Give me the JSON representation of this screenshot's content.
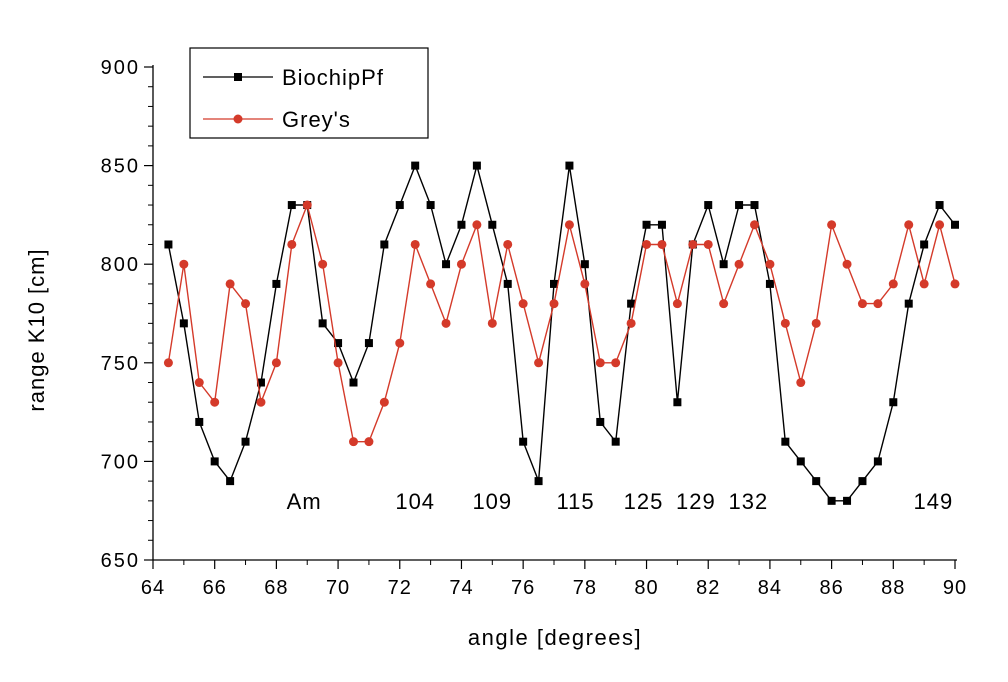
{
  "chart_data": {
    "type": "line",
    "title": "",
    "xlabel": "angle [degrees]",
    "ylabel": "range K10 [cm]",
    "xlim": [
      64,
      90
    ],
    "ylim": [
      650,
      900
    ],
    "x_ticks": [
      64,
      66,
      68,
      70,
      72,
      74,
      76,
      78,
      80,
      82,
      84,
      86,
      88,
      90
    ],
    "y_ticks": [
      650,
      700,
      750,
      800,
      850,
      900
    ],
    "grid": false,
    "legend_position": "top-left",
    "series": [
      {
        "name": "BiochipPf",
        "color": "#000000",
        "marker": "square",
        "points": [
          [
            64.5,
            810
          ],
          [
            65.0,
            770
          ],
          [
            65.5,
            720
          ],
          [
            66.0,
            700
          ],
          [
            66.5,
            690
          ],
          [
            67.0,
            710
          ],
          [
            67.5,
            740
          ],
          [
            68.0,
            790
          ],
          [
            68.5,
            830
          ],
          [
            69.0,
            830
          ],
          [
            69.5,
            770
          ],
          [
            70.0,
            760
          ],
          [
            70.5,
            740
          ],
          [
            71.0,
            760
          ],
          [
            71.5,
            810
          ],
          [
            72.0,
            830
          ],
          [
            72.5,
            850
          ],
          [
            73.0,
            830
          ],
          [
            73.5,
            800
          ],
          [
            74.0,
            820
          ],
          [
            74.5,
            850
          ],
          [
            75.0,
            820
          ],
          [
            75.5,
            790
          ],
          [
            76.0,
            710
          ],
          [
            76.5,
            690
          ],
          [
            77.0,
            790
          ],
          [
            77.5,
            850
          ],
          [
            78.0,
            800
          ],
          [
            78.5,
            720
          ],
          [
            79.0,
            710
          ],
          [
            79.5,
            780
          ],
          [
            80.0,
            820
          ],
          [
            80.5,
            820
          ],
          [
            81.0,
            730
          ],
          [
            81.5,
            810
          ],
          [
            82.0,
            830
          ],
          [
            82.5,
            800
          ],
          [
            83.0,
            830
          ],
          [
            83.5,
            830
          ],
          [
            84.0,
            790
          ],
          [
            84.5,
            710
          ],
          [
            85.0,
            700
          ],
          [
            85.5,
            690
          ],
          [
            86.0,
            680
          ],
          [
            86.5,
            680
          ],
          [
            87.0,
            690
          ],
          [
            87.5,
            700
          ],
          [
            88.0,
            730
          ],
          [
            88.5,
            780
          ],
          [
            89.0,
            810
          ],
          [
            89.5,
            830
          ],
          [
            90.0,
            820
          ]
        ]
      },
      {
        "name": "Grey's",
        "color": "#d43a2a",
        "marker": "circle",
        "points": [
          [
            64.5,
            750
          ],
          [
            65.0,
            800
          ],
          [
            65.5,
            740
          ],
          [
            66.0,
            730
          ],
          [
            66.5,
            790
          ],
          [
            67.0,
            780
          ],
          [
            67.5,
            730
          ],
          [
            68.0,
            750
          ],
          [
            68.5,
            810
          ],
          [
            69.0,
            830
          ],
          [
            69.5,
            800
          ],
          [
            70.0,
            750
          ],
          [
            70.5,
            710
          ],
          [
            71.0,
            710
          ],
          [
            71.5,
            730
          ],
          [
            72.0,
            760
          ],
          [
            72.5,
            810
          ],
          [
            73.0,
            790
          ],
          [
            73.5,
            770
          ],
          [
            74.0,
            800
          ],
          [
            74.5,
            820
          ],
          [
            75.0,
            770
          ],
          [
            75.5,
            810
          ],
          [
            76.0,
            780
          ],
          [
            76.5,
            750
          ],
          [
            77.0,
            780
          ],
          [
            77.5,
            820
          ],
          [
            78.0,
            790
          ],
          [
            78.5,
            750
          ],
          [
            79.0,
            750
          ],
          [
            79.5,
            770
          ],
          [
            80.0,
            810
          ],
          [
            80.5,
            810
          ],
          [
            81.0,
            780
          ],
          [
            81.5,
            810
          ],
          [
            82.0,
            810
          ],
          [
            82.5,
            780
          ],
          [
            83.0,
            800
          ],
          [
            83.5,
            820
          ],
          [
            84.0,
            800
          ],
          [
            84.5,
            770
          ],
          [
            85.0,
            740
          ],
          [
            85.5,
            770
          ],
          [
            86.0,
            820
          ],
          [
            86.5,
            800
          ],
          [
            87.0,
            780
          ],
          [
            87.5,
            780
          ],
          [
            88.0,
            790
          ],
          [
            88.5,
            820
          ],
          [
            89.0,
            790
          ],
          [
            89.5,
            820
          ],
          [
            90.0,
            790
          ]
        ]
      }
    ],
    "annotations": [
      {
        "text": "Am",
        "x": 68.9,
        "y": 680
      },
      {
        "text": "104",
        "x": 72.5,
        "y": 680
      },
      {
        "text": "109",
        "x": 75.0,
        "y": 680
      },
      {
        "text": "115",
        "x": 77.7,
        "y": 680
      },
      {
        "text": "125",
        "x": 79.9,
        "y": 680
      },
      {
        "text": "129",
        "x": 81.6,
        "y": 680
      },
      {
        "text": "132",
        "x": 83.3,
        "y": 680
      },
      {
        "text": "149",
        "x": 89.3,
        "y": 680
      }
    ]
  }
}
